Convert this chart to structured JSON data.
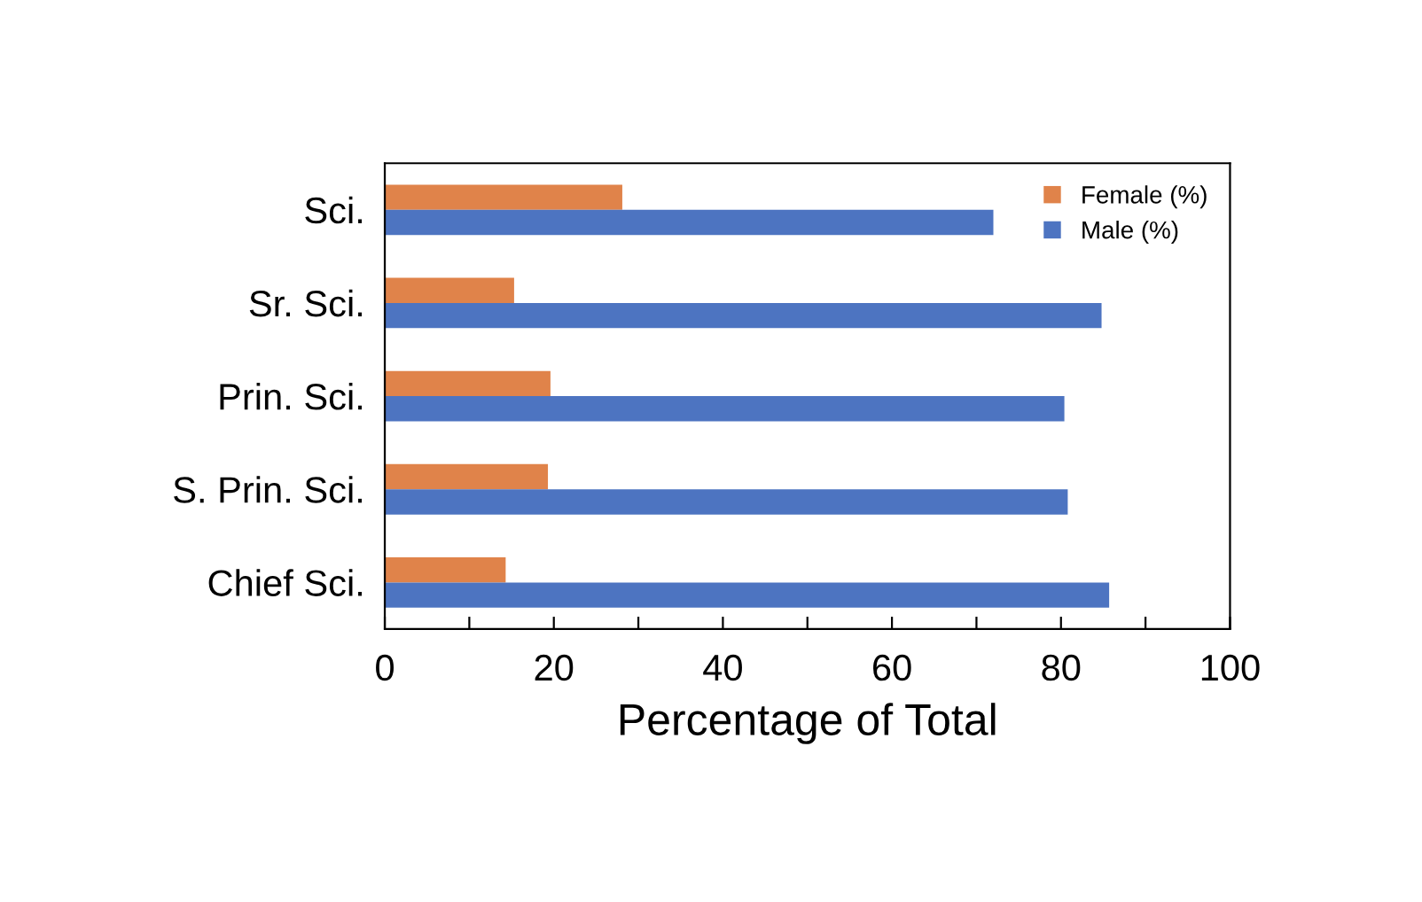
{
  "chart_data": {
    "type": "bar",
    "orientation": "horizontal",
    "xlabel": "Percentage of Total",
    "categories": [
      "Sci.",
      "Sr. Sci.",
      "Prin. Sci.",
      "S. Prin. Sci.",
      "Chief Sci."
    ],
    "series": [
      {
        "name": "Female (%)",
        "color": "#e0834a",
        "values": [
          28.1,
          15.3,
          19.6,
          19.3,
          14.3
        ]
      },
      {
        "name": "Male (%)",
        "color": "#4d74c1",
        "values": [
          72.0,
          84.8,
          80.4,
          80.8,
          85.7
        ]
      }
    ],
    "xlim": [
      0,
      100
    ],
    "xticks": [
      0,
      {
        "value": 10,
        "label": null
      },
      20,
      {
        "value": 30,
        "label": null
      },
      40,
      {
        "value": 50,
        "label": null
      },
      60,
      {
        "value": 70,
        "label": null
      },
      80,
      {
        "value": 90,
        "label": null
      },
      100
    ],
    "grid": false,
    "legend": "top right"
  }
}
